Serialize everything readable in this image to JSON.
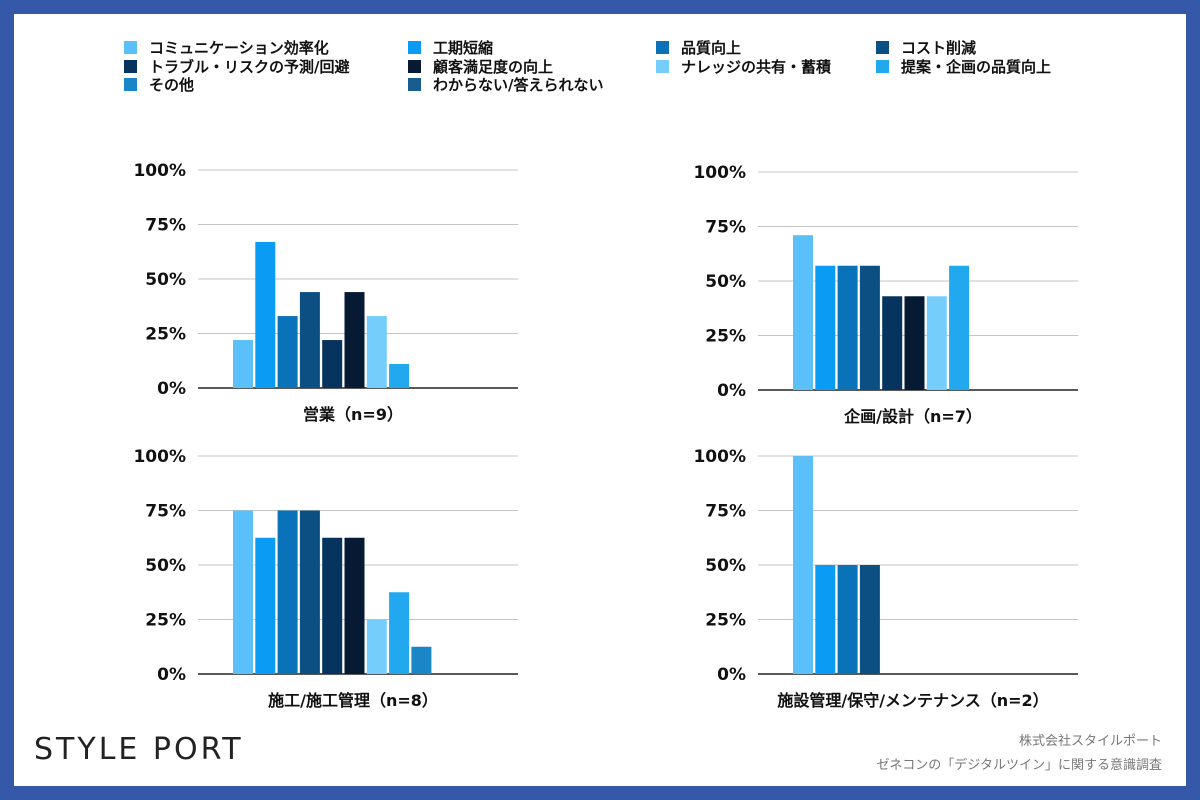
{
  "legend": [
    {
      "label": "コミュニケーション効率化",
      "color": "#5bc0f8"
    },
    {
      "label": "工期短縮",
      "color": "#0a9cf5"
    },
    {
      "label": "品質向上",
      "color": "#0a72b8"
    },
    {
      "label": "コスト削減",
      "color": "#0c4f82"
    },
    {
      "label": "トラブル・リスクの予測/回避",
      "color": "#07345e"
    },
    {
      "label": "顧客満足度の向上",
      "color": "#071a33"
    },
    {
      "label": "ナレッジの共有・蓄積",
      "color": "#74cdfa"
    },
    {
      "label": "提案・企画の品質向上",
      "color": "#21a8ee"
    },
    {
      "label": "その他",
      "color": "#1b86c7"
    },
    {
      "label": "わからない/答えられない",
      "color": "#185d8e"
    }
  ],
  "chart_data": [
    {
      "type": "bar",
      "title": "営業（n=9）",
      "ylim": [
        0,
        100
      ],
      "yticks": [
        "100%",
        "75%",
        "50%",
        "25%",
        "0%"
      ],
      "grid": true,
      "series": [
        {
          "name": "コミュニケーション効率化",
          "values": [
            22
          ]
        },
        {
          "name": "工期短縮",
          "values": [
            67
          ]
        },
        {
          "name": "品質向上",
          "values": [
            33
          ]
        },
        {
          "name": "コスト削減",
          "values": [
            44
          ]
        },
        {
          "name": "トラブル・リスクの予測/回避",
          "values": [
            22
          ]
        },
        {
          "name": "顧客満足度の向上",
          "values": [
            44
          ]
        },
        {
          "name": "ナレッジの共有・蓄積",
          "values": [
            33
          ]
        },
        {
          "name": "提案・企画の品質向上",
          "values": [
            11
          ]
        },
        {
          "name": "その他",
          "values": [
            0
          ]
        },
        {
          "name": "わからない/答えられない",
          "values": [
            0
          ]
        }
      ]
    },
    {
      "type": "bar",
      "title": "企画/設計（n=7）",
      "ylim": [
        0,
        100
      ],
      "yticks": [
        "100%",
        "75%",
        "50%",
        "25%",
        "0%"
      ],
      "grid": true,
      "series": [
        {
          "name": "コミュニケーション効率化",
          "values": [
            71
          ]
        },
        {
          "name": "工期短縮",
          "values": [
            57
          ]
        },
        {
          "name": "品質向上",
          "values": [
            57
          ]
        },
        {
          "name": "コスト削減",
          "values": [
            57
          ]
        },
        {
          "name": "トラブル・リスクの予測/回避",
          "values": [
            43
          ]
        },
        {
          "name": "顧客満足度の向上",
          "values": [
            43
          ]
        },
        {
          "name": "ナレッジの共有・蓄積",
          "values": [
            43
          ]
        },
        {
          "name": "提案・企画の品質向上",
          "values": [
            57
          ]
        },
        {
          "name": "その他",
          "values": [
            0
          ]
        },
        {
          "name": "わからない/答えられない",
          "values": [
            0
          ]
        }
      ]
    },
    {
      "type": "bar",
      "title": "施工/施工管理（n=8）",
      "ylim": [
        0,
        100
      ],
      "yticks": [
        "100%",
        "75%",
        "50%",
        "25%",
        "0%"
      ],
      "grid": true,
      "series": [
        {
          "name": "コミュニケーション効率化",
          "values": [
            75
          ]
        },
        {
          "name": "工期短縮",
          "values": [
            62.5
          ]
        },
        {
          "name": "品質向上",
          "values": [
            75
          ]
        },
        {
          "name": "コスト削減",
          "values": [
            75
          ]
        },
        {
          "name": "トラブル・リスクの予測/回避",
          "values": [
            62.5
          ]
        },
        {
          "name": "顧客満足度の向上",
          "values": [
            62.5
          ]
        },
        {
          "name": "ナレッジの共有・蓄積",
          "values": [
            25
          ]
        },
        {
          "name": "提案・企画の品質向上",
          "values": [
            37.5
          ]
        },
        {
          "name": "その他",
          "values": [
            12.5
          ]
        },
        {
          "name": "わからない/答えられない",
          "values": [
            0
          ]
        }
      ]
    },
    {
      "type": "bar",
      "title": "施設管理/保守/メンテナンス（n=2）",
      "ylim": [
        0,
        100
      ],
      "yticks": [
        "100%",
        "75%",
        "50%",
        "25%",
        "0%"
      ],
      "grid": true,
      "series": [
        {
          "name": "コミュニケーション効率化",
          "values": [
            100
          ]
        },
        {
          "name": "工期短縮",
          "values": [
            50
          ]
        },
        {
          "name": "品質向上",
          "values": [
            50
          ]
        },
        {
          "name": "コスト削減",
          "values": [
            50
          ]
        },
        {
          "name": "トラブル・リスクの予測/回避",
          "values": [
            0
          ]
        },
        {
          "name": "顧客満足度の向上",
          "values": [
            0
          ]
        },
        {
          "name": "ナレッジの共有・蓄積",
          "values": [
            0
          ]
        },
        {
          "name": "提案・企画の品質向上",
          "values": [
            0
          ]
        },
        {
          "name": "その他",
          "values": [
            0
          ]
        },
        {
          "name": "わからない/答えられない",
          "values": [
            0
          ]
        }
      ]
    }
  ],
  "logo": "STYLE PORT",
  "footer": {
    "company": "株式会社スタイルポート",
    "survey": "ゼネコンの「デジタルツイン」に関する意識調査"
  }
}
